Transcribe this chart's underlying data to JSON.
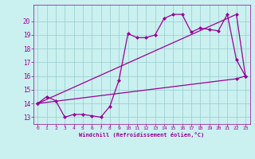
{
  "xlabel": "Windchill (Refroidissement éolien,°C)",
  "bg_color": "#caf0f0",
  "grid_color": "#99cccc",
  "line_color": "#990099",
  "xlim": [
    -0.5,
    23.5
  ],
  "ylim": [
    12.5,
    21.2
  ],
  "xticks": [
    0,
    1,
    2,
    3,
    4,
    5,
    6,
    7,
    8,
    9,
    10,
    11,
    12,
    13,
    14,
    15,
    16,
    17,
    18,
    19,
    20,
    21,
    22,
    23
  ],
  "yticks": [
    13,
    14,
    15,
    16,
    17,
    18,
    19,
    20
  ],
  "line1_x": [
    0,
    1,
    2,
    3,
    4,
    5,
    6,
    7,
    8,
    9,
    10,
    11,
    12,
    13,
    14,
    15,
    16,
    17,
    18,
    19,
    20,
    21,
    22,
    23
  ],
  "line1_y": [
    14.0,
    14.5,
    14.2,
    13.0,
    13.2,
    13.2,
    13.1,
    13.0,
    13.8,
    15.7,
    19.1,
    18.8,
    18.8,
    19.0,
    20.2,
    20.5,
    20.5,
    19.2,
    19.5,
    19.4,
    19.3,
    20.5,
    17.2,
    16.0
  ],
  "line2_x": [
    0,
    22,
    23
  ],
  "line2_y": [
    14.0,
    20.5,
    16.0
  ],
  "line3_x": [
    0,
    22,
    23
  ],
  "line3_y": [
    14.0,
    15.8,
    16.0
  ]
}
